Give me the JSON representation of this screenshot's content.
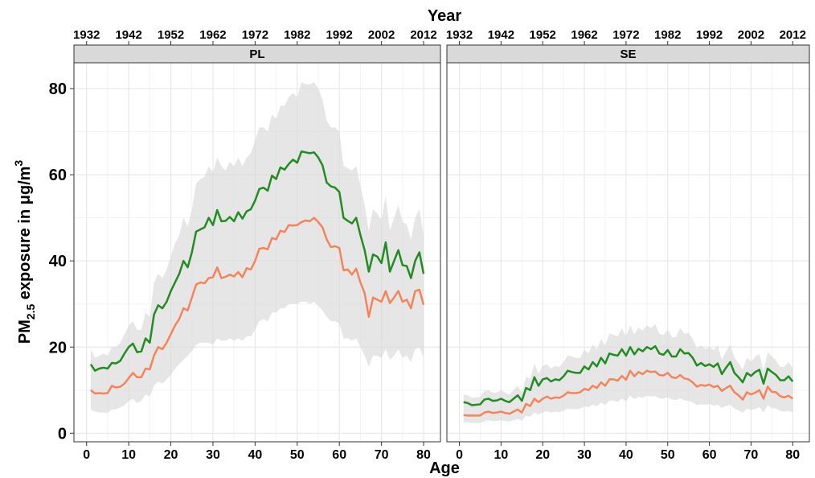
{
  "labels": {
    "x": "Age",
    "x2": "Year",
    "y_main": "PM",
    "y_sub": "2.5",
    "y_rest": " exposure in μg/m",
    "y_sup": "3"
  },
  "chart_data": [
    {
      "type": "line",
      "title": "PL",
      "x": [
        1,
        2,
        3,
        4,
        5,
        6,
        7,
        8,
        9,
        10,
        11,
        12,
        13,
        14,
        15,
        16,
        17,
        18,
        19,
        20,
        21,
        22,
        23,
        24,
        25,
        26,
        27,
        28,
        29,
        30,
        31,
        32,
        33,
        34,
        35,
        36,
        37,
        38,
        39,
        40,
        41,
        42,
        43,
        44,
        45,
        46,
        47,
        48,
        49,
        50,
        51,
        52,
        53,
        54,
        55,
        56,
        57,
        58,
        59,
        60,
        61,
        62,
        63,
        64,
        65,
        66,
        67,
        68,
        69,
        70,
        71,
        72,
        73,
        74,
        75,
        76,
        77,
        78,
        79,
        80
      ],
      "band": {
        "color": "#d9d9d9",
        "lower": [
          5.5,
          5,
          4.8,
          4.8,
          4.7,
          5.5,
          5.5,
          6,
          6.5,
          7.5,
          8,
          7,
          7.5,
          9,
          8.5,
          11,
          12,
          11.5,
          12.5,
          13.5,
          15,
          16,
          17,
          18,
          19,
          20.5,
          21,
          21,
          21,
          20.5,
          22,
          21.5,
          21.5,
          22,
          21.5,
          22,
          21.5,
          22.5,
          22.5,
          24,
          26,
          26.5,
          26,
          28,
          28,
          29,
          29,
          30,
          30,
          30,
          30.5,
          30.5,
          30,
          30.5,
          29.5,
          28.5,
          27,
          26,
          26,
          25.5,
          22,
          22,
          21.5,
          22,
          20,
          18,
          15.5,
          18,
          18,
          17.5,
          19.5,
          17,
          18,
          19.5,
          17.5,
          18,
          16.5,
          19.5,
          20,
          17.5
        ],
        "upper": [
          19.5,
          17.5,
          18,
          18.5,
          18,
          20,
          20,
          21,
          23,
          25,
          26,
          24,
          24,
          28,
          27,
          35,
          37,
          36,
          38,
          41,
          44,
          46,
          50,
          48,
          52,
          58,
          59,
          59.5,
          62,
          60.5,
          64,
          62,
          61,
          63,
          62,
          64,
          62,
          64,
          65,
          68,
          71,
          71,
          70,
          74,
          73,
          76,
          76,
          78,
          79,
          78,
          81.5,
          81,
          81,
          81.5,
          80,
          77.5,
          72.5,
          71,
          71,
          70,
          62,
          61.5,
          61,
          62,
          57.5,
          53,
          47,
          52,
          51,
          49.5,
          55,
          47,
          50,
          53,
          49,
          48.5,
          45,
          50,
          52,
          46
        ]
      },
      "series": [
        {
          "color": "#228b22",
          "values": [
            16,
            14.5,
            15,
            15.2,
            15,
            16.3,
            16.2,
            16.8,
            18.5,
            20,
            20.8,
            18.8,
            19,
            22,
            21,
            27.5,
            29.7,
            29,
            30.5,
            33,
            35,
            37,
            40,
            38.5,
            42,
            46.8,
            47.3,
            47.8,
            50,
            48.3,
            51.8,
            49.2,
            49.3,
            50.2,
            49.2,
            51.3,
            49.8,
            51.5,
            52,
            54,
            56.7,
            57,
            56.3,
            59.8,
            59,
            61.7,
            61.2,
            62.5,
            63.5,
            62.8,
            65.4,
            65.2,
            65,
            65.2,
            64,
            62.2,
            58.2,
            57.3,
            57,
            56,
            50,
            49.3,
            48.7,
            50,
            46,
            42.5,
            37.5,
            41.5,
            41,
            39.5,
            44.3,
            37.5,
            40,
            42.5,
            39,
            38.8,
            36,
            40,
            42,
            37
          ]
        },
        {
          "color": "#f4845a",
          "values": [
            10,
            9.2,
            9.3,
            9.2,
            9.3,
            11,
            10.6,
            10.8,
            11.5,
            12.8,
            14,
            13,
            13,
            15,
            14.8,
            18,
            20,
            19.5,
            21,
            23,
            25,
            26.5,
            29,
            28.5,
            31.5,
            34.5,
            35,
            34.8,
            36,
            36.2,
            38.5,
            36,
            36.3,
            36.8,
            36.4,
            37.4,
            36.2,
            38.3,
            38,
            40,
            42.8,
            43,
            42.7,
            45.3,
            45,
            47,
            46.7,
            48.3,
            48.2,
            48.3,
            49,
            49.4,
            49.2,
            50,
            49,
            47.8,
            45,
            43.2,
            43.4,
            43,
            37.8,
            38,
            36.8,
            38.2,
            35,
            32.5,
            27,
            31.5,
            31,
            30.5,
            33,
            30.2,
            31.5,
            33,
            30.5,
            31,
            29,
            33,
            33.3,
            29.8
          ]
        }
      ],
      "xlim": [
        -3,
        84
      ],
      "xticks": [
        0,
        10,
        20,
        30,
        40,
        50,
        60,
        70,
        80
      ],
      "x2lim": [
        1929,
        2016
      ],
      "x2ticks": [
        1932,
        1942,
        1952,
        1962,
        1972,
        1982,
        1992,
        2002,
        2012
      ],
      "ylim": [
        -2,
        86
      ],
      "yticks": [
        0,
        20,
        40,
        60,
        80
      ],
      "grid": true
    },
    {
      "type": "line",
      "title": "SE",
      "x": [
        1,
        2,
        3,
        4,
        5,
        6,
        7,
        8,
        9,
        10,
        11,
        12,
        13,
        14,
        15,
        16,
        17,
        18,
        19,
        20,
        21,
        22,
        23,
        24,
        25,
        26,
        27,
        28,
        29,
        30,
        31,
        32,
        33,
        34,
        35,
        36,
        37,
        38,
        39,
        40,
        41,
        42,
        43,
        44,
        45,
        46,
        47,
        48,
        49,
        50,
        51,
        52,
        53,
        54,
        55,
        56,
        57,
        58,
        59,
        60,
        61,
        62,
        63,
        64,
        65,
        66,
        67,
        68,
        69,
        70,
        71,
        72,
        73,
        74,
        75,
        76,
        77,
        78,
        79,
        80
      ],
      "band": {
        "color": "#d9d9d9",
        "lower": [
          2.5,
          2.5,
          2.4,
          2.4,
          2.4,
          2.8,
          3,
          2.8,
          2.8,
          3,
          2.8,
          2.7,
          3,
          3.3,
          2.9,
          4,
          3.8,
          4.8,
          4.3,
          4.8,
          5.1,
          4.8,
          5,
          4.9,
          5.2,
          5.7,
          5.6,
          5.6,
          5.7,
          6.2,
          6,
          6.6,
          6.3,
          7.1,
          6.6,
          7.5,
          7.5,
          7.3,
          8,
          7.4,
          8.7,
          7.9,
          8.5,
          8.2,
          8.7,
          8.5,
          8.6,
          8.1,
          8,
          8.4,
          7.8,
          7.7,
          8.1,
          7.6,
          7.5,
          7.1,
          6.5,
          6.7,
          6.6,
          6.8,
          6.4,
          6.6,
          5.9,
          6.3,
          6.6,
          5.7,
          5.3,
          4.7,
          5.7,
          5.4,
          5.6,
          6,
          4.8,
          6.5,
          5.8,
          5.7,
          5.2,
          5,
          5.2,
          4.8
        ],
        "upper": [
          9,
          8.8,
          8.2,
          8.3,
          8.4,
          9.8,
          10,
          9.4,
          9.5,
          10,
          9.4,
          9,
          10,
          11,
          9.4,
          13.1,
          12.5,
          16.2,
          13.8,
          15.6,
          16,
          15,
          15.6,
          15.4,
          16.5,
          18.1,
          17.8,
          17.5,
          17.5,
          19.4,
          18.5,
          20.6,
          19.4,
          21.9,
          20.3,
          23.1,
          22.8,
          22.5,
          24.4,
          22.5,
          25,
          22.9,
          24.5,
          23.8,
          25,
          24.4,
          25.3,
          23.1,
          22.8,
          24.1,
          22.3,
          22.3,
          24.4,
          23.1,
          23.3,
          21.9,
          19.6,
          20.4,
          19.5,
          20,
          19.3,
          20.3,
          17.1,
          19,
          20.6,
          17.5,
          16.3,
          14.8,
          17.5,
          16.6,
          17.8,
          18.4,
          14.4,
          18.8,
          17.8,
          16.9,
          15.4,
          15.4,
          16.5,
          15
        ]
      },
      "series": [
        {
          "color": "#228b22",
          "values": [
            7.2,
            7,
            6.5,
            6.6,
            6.7,
            7.8,
            8,
            7.5,
            7.6,
            8,
            7.5,
            7.2,
            8,
            8.8,
            7.5,
            10.5,
            10,
            13,
            11,
            12.5,
            12.8,
            12,
            12.5,
            12.3,
            13.2,
            14.5,
            14.2,
            14,
            14,
            15.5,
            14.8,
            16.5,
            15.5,
            17.5,
            16.2,
            18.5,
            18.2,
            18,
            19.5,
            18,
            20,
            18.3,
            19.6,
            19,
            20,
            19.5,
            20.2,
            18.5,
            18.2,
            19.3,
            17.8,
            17.8,
            19.5,
            18.5,
            18.6,
            17.5,
            15.7,
            16.3,
            15.6,
            16,
            15.4,
            16.2,
            13.7,
            15.2,
            16.5,
            14,
            13,
            11.8,
            14,
            13.3,
            14.2,
            14.7,
            11.5,
            15,
            14.2,
            13.5,
            12.3,
            12.3,
            13.2,
            12
          ]
        },
        {
          "color": "#f4845a",
          "values": [
            4.2,
            4.1,
            4.1,
            4.1,
            4.1,
            4.8,
            5,
            4.7,
            4.8,
            5,
            4.7,
            4.5,
            5,
            5.5,
            4.8,
            6.8,
            6.3,
            8,
            7.2,
            8,
            8.5,
            8,
            8.3,
            8.2,
            8.7,
            9.5,
            9.3,
            9.3,
            9.5,
            10.3,
            10,
            11,
            10.5,
            11.8,
            11,
            12.5,
            12.5,
            12.2,
            13.3,
            12.4,
            14.5,
            13.2,
            14.2,
            13.7,
            14.5,
            14.2,
            14.3,
            13.5,
            13.4,
            14,
            13,
            12.8,
            13.5,
            12.7,
            12.5,
            11.8,
            10.8,
            11.2,
            11,
            11.3,
            10.7,
            11,
            9.8,
            10.5,
            11,
            9.5,
            8.8,
            7.8,
            9.5,
            9,
            9.4,
            10,
            8,
            10.8,
            9.6,
            9.5,
            8.6,
            8.3,
            8.7,
            8
          ]
        }
      ],
      "xlim": [
        -3,
        84
      ],
      "xticks": [
        0,
        10,
        20,
        30,
        40,
        50,
        60,
        70,
        80
      ],
      "x2lim": [
        1929,
        2016
      ],
      "x2ticks": [
        1932,
        1942,
        1952,
        1962,
        1972,
        1982,
        1992,
        2002,
        2012
      ],
      "ylim": [
        -2,
        86
      ],
      "yticks": [
        0,
        20,
        40,
        60,
        80
      ],
      "grid": true
    }
  ]
}
